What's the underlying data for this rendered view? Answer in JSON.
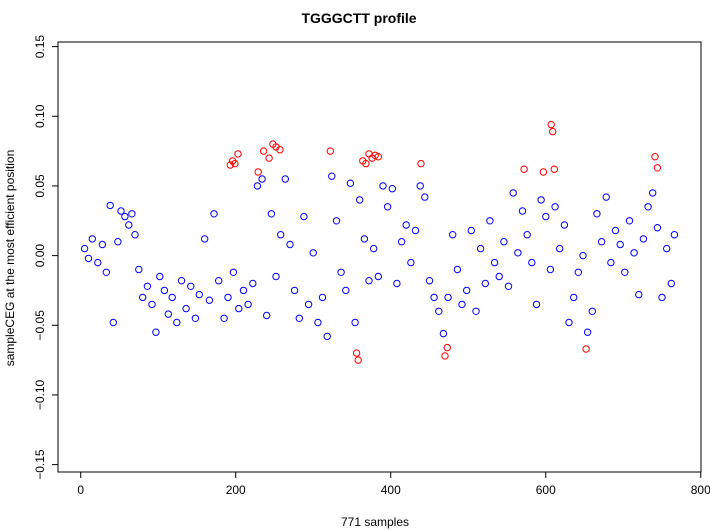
{
  "chart_data": {
    "type": "scatter",
    "title": "TGGGCTT profile",
    "xlabel": "771 samples",
    "ylabel": "sampleCEG at the most efficient position",
    "xlim": [
      -29.3,
      800.3
    ],
    "ylim": [
      -0.1553,
      0.1533
    ],
    "xticks": [
      0,
      200,
      400,
      600,
      800
    ],
    "xtick_labels": [
      "0",
      "200",
      "400",
      "600",
      "800"
    ],
    "yticks": [
      -0.15,
      -0.1,
      -0.05,
      0.0,
      0.05,
      0.1,
      0.15
    ],
    "ytick_labels": [
      "−0.15",
      "−0.10",
      "−0.05",
      "0.00",
      "0.05",
      "0.10",
      "0.15"
    ],
    "grid": false,
    "legend": null,
    "colors": {
      "normal": "#0000ff",
      "highlight": "#ff0000",
      "axis": "#000000"
    },
    "n_points": 771,
    "series": [
      {
        "color": "#0000ff",
        "points": [
          [
            5,
            0.005
          ],
          [
            10,
            -0.002
          ],
          [
            15,
            0.012
          ],
          [
            22,
            -0.005
          ],
          [
            28,
            0.008
          ],
          [
            33,
            -0.012
          ],
          [
            38,
            0.036
          ],
          [
            42,
            -0.048
          ],
          [
            48,
            0.01
          ],
          [
            52,
            0.032
          ],
          [
            57,
            0.028
          ],
          [
            62,
            0.022
          ],
          [
            66,
            0.03
          ],
          [
            70,
            0.015
          ],
          [
            75,
            -0.01
          ],
          [
            80,
            -0.03
          ],
          [
            86,
            -0.022
          ],
          [
            92,
            -0.035
          ],
          [
            97,
            -0.055
          ],
          [
            102,
            -0.015
          ],
          [
            108,
            -0.025
          ],
          [
            113,
            -0.042
          ],
          [
            118,
            -0.03
          ],
          [
            124,
            -0.048
          ],
          [
            130,
            -0.018
          ],
          [
            136,
            -0.038
          ],
          [
            142,
            -0.022
          ],
          [
            148,
            -0.045
          ],
          [
            153,
            -0.028
          ],
          [
            160,
            0.012
          ],
          [
            166,
            -0.032
          ],
          [
            172,
            0.03
          ],
          [
            178,
            -0.018
          ],
          [
            185,
            -0.045
          ],
          [
            190,
            -0.03
          ],
          [
            197,
            -0.012
          ],
          [
            204,
            -0.038
          ],
          [
            210,
            -0.025
          ],
          [
            216,
            -0.035
          ],
          [
            222,
            -0.02
          ],
          [
            228,
            0.05
          ],
          [
            234,
            0.055
          ],
          [
            240,
            -0.043
          ],
          [
            246,
            0.03
          ],
          [
            252,
            -0.015
          ],
          [
            258,
            0.015
          ],
          [
            264,
            0.055
          ],
          [
            270,
            0.008
          ],
          [
            276,
            -0.025
          ],
          [
            282,
            -0.045
          ],
          [
            288,
            0.028
          ],
          [
            294,
            -0.035
          ],
          [
            300,
            0.002
          ],
          [
            306,
            -0.048
          ],
          [
            312,
            -0.03
          ],
          [
            318,
            -0.058
          ],
          [
            324,
            0.057
          ],
          [
            330,
            0.025
          ],
          [
            336,
            -0.012
          ],
          [
            342,
            -0.025
          ],
          [
            348,
            0.052
          ],
          [
            354,
            -0.048
          ],
          [
            360,
            0.04
          ],
          [
            366,
            0.012
          ],
          [
            372,
            -0.018
          ],
          [
            378,
            0.005
          ],
          [
            384,
            -0.015
          ],
          [
            390,
            0.05
          ],
          [
            396,
            0.035
          ],
          [
            402,
            0.048
          ],
          [
            408,
            -0.02
          ],
          [
            414,
            0.01
          ],
          [
            420,
            0.022
          ],
          [
            426,
            -0.005
          ],
          [
            432,
            0.018
          ],
          [
            438,
            0.05
          ],
          [
            444,
            0.042
          ],
          [
            450,
            -0.018
          ],
          [
            456,
            -0.03
          ],
          [
            462,
            -0.04
          ],
          [
            468,
            -0.056
          ],
          [
            474,
            -0.03
          ],
          [
            480,
            0.015
          ],
          [
            486,
            -0.01
          ],
          [
            492,
            -0.035
          ],
          [
            498,
            -0.025
          ],
          [
            504,
            0.018
          ],
          [
            510,
            -0.04
          ],
          [
            516,
            0.005
          ],
          [
            522,
            -0.02
          ],
          [
            528,
            0.025
          ],
          [
            534,
            -0.005
          ],
          [
            540,
            -0.015
          ],
          [
            546,
            0.01
          ],
          [
            552,
            -0.022
          ],
          [
            558,
            0.045
          ],
          [
            564,
            0.002
          ],
          [
            570,
            0.032
          ],
          [
            576,
            0.015
          ],
          [
            582,
            -0.005
          ],
          [
            588,
            -0.035
          ],
          [
            594,
            0.04
          ],
          [
            600,
            0.028
          ],
          [
            606,
            -0.01
          ],
          [
            612,
            0.035
          ],
          [
            618,
            0.005
          ],
          [
            624,
            0.022
          ],
          [
            630,
            -0.048
          ],
          [
            636,
            -0.03
          ],
          [
            642,
            -0.012
          ],
          [
            648,
            0.0
          ],
          [
            654,
            -0.055
          ],
          [
            660,
            -0.04
          ],
          [
            666,
            0.03
          ],
          [
            672,
            0.01
          ],
          [
            678,
            0.042
          ],
          [
            684,
            -0.005
          ],
          [
            690,
            0.018
          ],
          [
            696,
            0.008
          ],
          [
            702,
            -0.012
          ],
          [
            708,
            0.025
          ],
          [
            714,
            0.002
          ],
          [
            720,
            -0.028
          ],
          [
            726,
            0.012
          ],
          [
            732,
            0.035
          ],
          [
            738,
            0.045
          ],
          [
            744,
            0.02
          ],
          [
            750,
            -0.03
          ],
          [
            756,
            0.005
          ],
          [
            762,
            -0.02
          ],
          [
            766,
            0.015
          ]
        ]
      },
      {
        "color": "#ff0000",
        "points": [
          [
            193,
            0.065
          ],
          [
            196,
            0.068
          ],
          [
            199,
            0.066
          ],
          [
            203,
            0.073
          ],
          [
            229,
            0.06
          ],
          [
            236,
            0.075
          ],
          [
            243,
            0.07
          ],
          [
            248,
            0.08
          ],
          [
            252,
            0.078
          ],
          [
            257,
            0.076
          ],
          [
            322,
            0.075
          ],
          [
            356,
            -0.07
          ],
          [
            358,
            -0.075
          ],
          [
            364,
            0.068
          ],
          [
            368,
            0.066
          ],
          [
            372,
            0.073
          ],
          [
            376,
            0.07
          ],
          [
            380,
            0.072
          ],
          [
            384,
            0.071
          ],
          [
            439,
            0.066
          ],
          [
            470,
            -0.072
          ],
          [
            473,
            -0.066
          ],
          [
            572,
            0.062
          ],
          [
            597,
            0.06
          ],
          [
            607,
            0.094
          ],
          [
            609,
            0.089
          ],
          [
            611,
            0.062
          ],
          [
            652,
            -0.067
          ],
          [
            741,
            0.071
          ],
          [
            744,
            0.063
          ]
        ]
      }
    ]
  }
}
